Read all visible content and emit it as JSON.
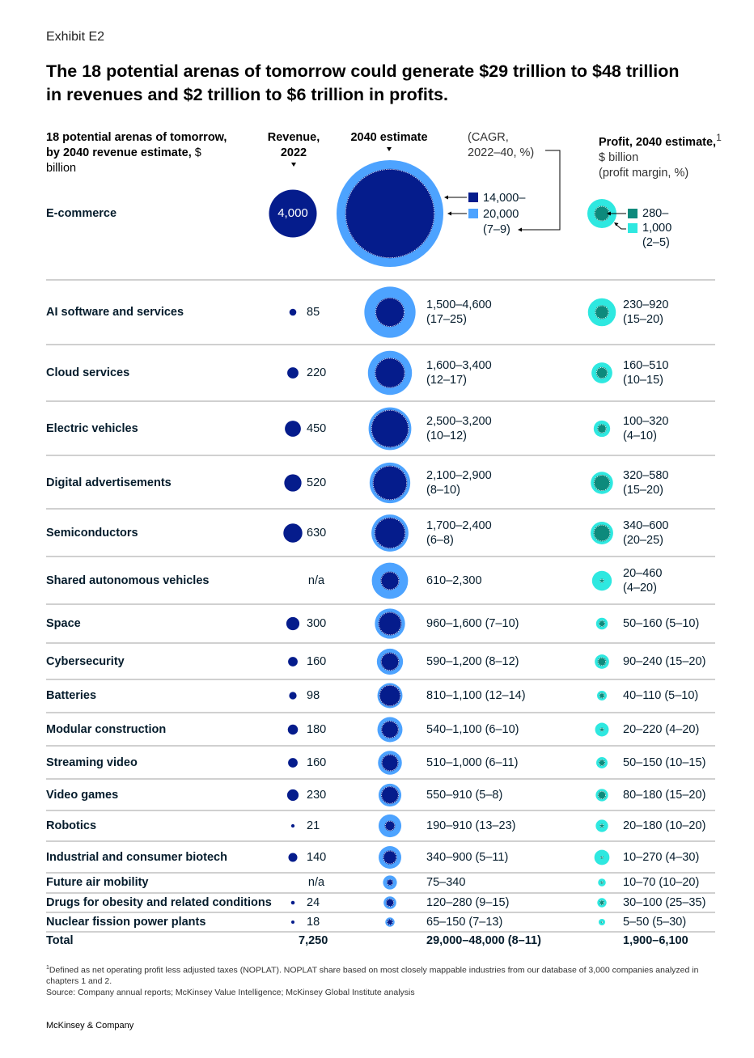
{
  "exhibit_label": "Exhibit E2",
  "title": "The 18 potential arenas of tomorrow could generate $29 trillion to $48 trillion in revenues and $2 trillion to $6 trillion in profits.",
  "headers": {
    "left_bold": "18 potential arenas of tomorrow, by 2040 revenue estimate,",
    "left_unit": " $ billion",
    "revenue_2022_line1": "Revenue,",
    "revenue_2022_line2": "2022",
    "estimate_2040": "2040 estimate",
    "cagr_line1": "(CAGR,",
    "cagr_line2": "2022–40, %)",
    "profit_bold": "Profit, 2040 estimate,",
    "profit_sup": "1",
    "profit_unit": " $ billion",
    "profit_margin": "(profit margin, %)"
  },
  "colors": {
    "navy": "#051c8c",
    "light_blue": "#4da3ff",
    "teal_dark": "#0d8a7c",
    "cyan": "#2ee8e0",
    "rule": "#b3b3b3",
    "text": "#051c2c"
  },
  "legend": {
    "revenue_low": "14,000–",
    "revenue_high": "20,000",
    "revenue_cagr": "(7–9)",
    "profit_low": "280–",
    "profit_high": "1,000",
    "profit_margin": "(2–5)"
  },
  "chart_data": {
    "type": "bubble-table",
    "title": "The 18 potential arenas of tomorrow could generate $29 trillion to $48 trillion in revenues and $2 trillion to $6 trillion in profits.",
    "columns": [
      "Arena",
      "Revenue, 2022 ($ billion)",
      "2040 revenue estimate ($ billion) (CAGR 2022–40, %)",
      "Profit, 2040 estimate ($ billion) (profit margin, %)"
    ],
    "rows": [
      {
        "name": "E-commerce",
        "rev2022": 4000,
        "rev2022_label": "4,000",
        "rev2040": [
          14000,
          20000
        ],
        "rev2040_label": "14,000–20,000",
        "cagr": "(7–9)",
        "profit": [
          280,
          1000
        ],
        "profit_label": "280–1,000",
        "margin": "(2–5)",
        "layout": "legend"
      },
      {
        "name": "AI software and services",
        "rev2022": 85,
        "rev2022_label": "85",
        "rev2040": [
          1500,
          4600
        ],
        "rev2040_label": "1,500–4,600",
        "cagr": "(17–25)",
        "profit": [
          230,
          920
        ],
        "profit_label": "230–920",
        "margin": "(15–20)",
        "layout": "two-line"
      },
      {
        "name": "Cloud services",
        "rev2022": 220,
        "rev2022_label": "220",
        "rev2040": [
          1600,
          3400
        ],
        "rev2040_label": "1,600–3,400",
        "cagr": "(12–17)",
        "profit": [
          160,
          510
        ],
        "profit_label": "160–510",
        "margin": "(10–15)",
        "layout": "two-line"
      },
      {
        "name": "Electric vehicles",
        "rev2022": 450,
        "rev2022_label": "450",
        "rev2040": [
          2500,
          3200
        ],
        "rev2040_label": "2,500–3,200",
        "cagr": "(10–12)",
        "profit": [
          100,
          320
        ],
        "profit_label": "100–320",
        "margin": "(4–10)",
        "layout": "two-line"
      },
      {
        "name": "Digital advertisements",
        "rev2022": 520,
        "rev2022_label": "520",
        "rev2040": [
          2100,
          2900
        ],
        "rev2040_label": "2,100–2,900",
        "cagr": "(8–10)",
        "profit": [
          320,
          580
        ],
        "profit_label": "320–580",
        "margin": "(15–20)",
        "layout": "two-line"
      },
      {
        "name": "Semiconductors",
        "rev2022": 630,
        "rev2022_label": "630",
        "rev2040": [
          1700,
          2400
        ],
        "rev2040_label": "1,700–2,400",
        "cagr": "(6–8)",
        "profit": [
          340,
          600
        ],
        "profit_label": "340–600",
        "margin": "(20–25)",
        "layout": "two-line"
      },
      {
        "name": "Shared autonomous vehicles",
        "rev2022": null,
        "rev2022_label": "n/a",
        "rev2040": [
          610,
          2300
        ],
        "rev2040_label": "610–2,300",
        "cagr": "",
        "profit": [
          20,
          460
        ],
        "profit_label": "20–460",
        "margin": "(4–20)",
        "layout": "two-line"
      },
      {
        "name": "Space",
        "rev2022": 300,
        "rev2022_label": "300",
        "rev2040": [
          960,
          1600
        ],
        "rev2040_label": "960–1,600",
        "cagr": "(7–10)",
        "profit": [
          50,
          160
        ],
        "profit_label": "50–160",
        "margin": "(5–10)",
        "layout": "one-line"
      },
      {
        "name": "Cybersecurity",
        "rev2022": 160,
        "rev2022_label": "160",
        "rev2040": [
          590,
          1200
        ],
        "rev2040_label": "590–1,200",
        "cagr": "(8–12)",
        "profit": [
          90,
          240
        ],
        "profit_label": "90–240",
        "margin": "(15–20)",
        "layout": "one-line"
      },
      {
        "name": "Batteries",
        "rev2022": 98,
        "rev2022_label": "98",
        "rev2040": [
          810,
          1100
        ],
        "rev2040_label": "810–1,100",
        "cagr": "(12–14)",
        "profit": [
          40,
          110
        ],
        "profit_label": "40–110",
        "margin": "(5–10)",
        "layout": "one-line"
      },
      {
        "name": "Modular construction",
        "rev2022": 180,
        "rev2022_label": "180",
        "rev2040": [
          540,
          1100
        ],
        "rev2040_label": "540–1,100",
        "cagr": "(6–10)",
        "profit": [
          20,
          220
        ],
        "profit_label": "20–220",
        "margin": "(4–20)",
        "layout": "one-line"
      },
      {
        "name": "Streaming video",
        "rev2022": 160,
        "rev2022_label": "160",
        "rev2040": [
          510,
          1000
        ],
        "rev2040_label": "510–1,000",
        "cagr": "(6–11)",
        "profit": [
          50,
          150
        ],
        "profit_label": "50–150",
        "margin": "(10–15)",
        "layout": "one-line"
      },
      {
        "name": "Video games",
        "rev2022": 230,
        "rev2022_label": "230",
        "rev2040": [
          550,
          910
        ],
        "rev2040_label": "550–910",
        "cagr": "(5–8)",
        "profit": [
          80,
          180
        ],
        "profit_label": "80–180",
        "margin": "(15–20)",
        "layout": "one-line"
      },
      {
        "name": "Robotics",
        "rev2022": 21,
        "rev2022_label": "21",
        "rev2040": [
          190,
          910
        ],
        "rev2040_label": "190–910",
        "cagr": "(13–23)",
        "profit": [
          20,
          180
        ],
        "profit_label": "20–180",
        "margin": "(10–20)",
        "layout": "one-line"
      },
      {
        "name": "Industrial and consumer biotech",
        "rev2022": 140,
        "rev2022_label": "140",
        "rev2040": [
          340,
          900
        ],
        "rev2040_label": "340–900",
        "cagr": "(5–11)",
        "profit": [
          10,
          270
        ],
        "profit_label": "10–270",
        "margin": "(4–30)",
        "layout": "one-line"
      },
      {
        "name": "Future air mobility",
        "rev2022": null,
        "rev2022_label": "n/a",
        "rev2040": [
          75,
          340
        ],
        "rev2040_label": "75–340",
        "cagr": "",
        "profit": [
          10,
          70
        ],
        "profit_label": "10–70",
        "margin": "(10–20)",
        "layout": "one-line"
      },
      {
        "name": "Drugs for obesity and related conditions",
        "rev2022": 24,
        "rev2022_label": "24",
        "rev2040": [
          120,
          280
        ],
        "rev2040_label": "120–280",
        "cagr": "(9–15)",
        "profit": [
          30,
          100
        ],
        "profit_label": "30–100",
        "margin": "(25–35)",
        "layout": "one-line"
      },
      {
        "name": "Nuclear fission power plants",
        "rev2022": 18,
        "rev2022_label": "18",
        "rev2040": [
          65,
          150
        ],
        "rev2040_label": "65–150",
        "cagr": "(7–13)",
        "profit": [
          5,
          50
        ],
        "profit_label": "5–50",
        "margin": "(5–30)",
        "layout": "one-line"
      }
    ],
    "total": {
      "name": "Total",
      "rev2022_label": "7,250",
      "rev2040_label": "29,000–48,000 (8–11)",
      "profit_label": "1,900–6,100"
    }
  },
  "footnote_sup": "1",
  "footnote": "Defined as net operating profit less adjusted taxes (NOPLAT). NOPLAT share based on most closely mappable industries from our database of 3,000 companies analyzed in chapters 1 and 2.",
  "source": "Source: Company annual reports; McKinsey Value Intelligence; McKinsey Global Institute analysis",
  "brand": "McKinsey & Company"
}
